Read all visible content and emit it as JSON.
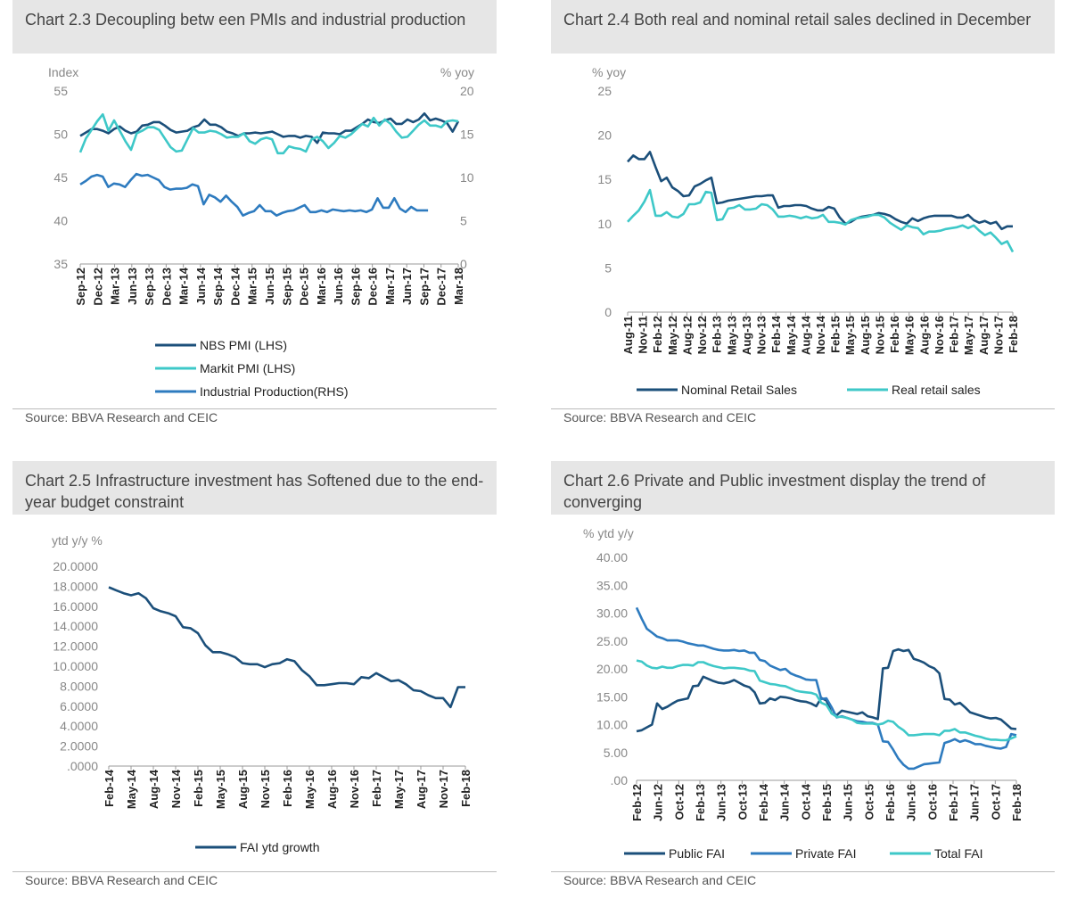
{
  "panels": [
    {
      "title": "Chart 2.3 Decoupling betw een PMIs and industrial production",
      "source": "Source: BBVA Research and CEIC"
    },
    {
      "title": "Chart 2.4 Both real and nominal retail sales declined in December",
      "source": "Source: BBVA Research and CEIC"
    },
    {
      "title": "Chart 2.5 Infrastructure investment has Softened due to the end-year budget constraint",
      "source": "Source: BBVA Research and CEIC"
    },
    {
      "title": "Chart 2.6 Private and Public investment display the trend of converging",
      "source": "Source: BBVA Research and CEIC"
    }
  ],
  "chart_data": [
    {
      "type": "line",
      "title": "Chart 2.3 Decoupling betw een PMIs and industrial production",
      "y_unit_left": "Index",
      "y_unit_right": "% yoy",
      "ylim": [
        35,
        55
      ],
      "yticks": [
        35,
        40,
        45,
        50,
        55
      ],
      "ylim_right": [
        0,
        20
      ],
      "yticks_right": [
        0,
        5,
        10,
        15,
        20
      ],
      "x_start": "2012-09",
      "x_end": "2018-03",
      "xtick_labels": [
        "Sep-12",
        "Dec-12",
        "Mar-13",
        "Jun-13",
        "Sep-13",
        "Dec-13",
        "Mar-14",
        "Jun-14",
        "Sep-14",
        "Dec-14",
        "Mar-15",
        "Jun-15",
        "Sep-15",
        "Dec-15",
        "Mar-16",
        "Jun-16",
        "Sep-16",
        "Dec-16",
        "Mar-17",
        "Jun-17",
        "Sep-17",
        "Dec-17",
        "Mar-18"
      ],
      "legend_position": "bottom",
      "series": [
        {
          "name": "NBS PMI (LHS)",
          "color": "#1b4f7a",
          "axis": "left",
          "values": [
            49.8,
            50.2,
            50.6,
            50.6,
            50.4,
            50.1,
            50.6,
            50.9,
            50.4,
            50.1,
            50.3,
            51.0,
            51.1,
            51.4,
            51.4,
            51.0,
            50.5,
            50.2,
            50.3,
            50.4,
            50.8,
            51.0,
            51.7,
            51.1,
            51.1,
            50.8,
            50.3,
            50.1,
            49.8,
            50.1,
            50.1,
            50.2,
            50.1,
            50.2,
            50.3,
            50.0,
            49.7,
            49.8,
            49.8,
            49.6,
            49.8,
            49.7,
            49.0,
            50.2,
            50.1,
            50.1,
            50.0,
            50.4,
            50.4,
            50.8,
            51.2,
            51.7,
            51.4,
            51.3,
            51.6,
            51.8,
            51.2,
            51.2,
            51.7,
            51.4,
            51.7,
            52.4,
            51.6,
            51.8,
            51.6,
            51.3,
            50.3,
            51.5
          ],
          "start_index": 0
        },
        {
          "name": "Markit PMI (LHS)",
          "color": "#3ec8c8",
          "axis": "left",
          "values": [
            47.9,
            49.5,
            50.5,
            51.5,
            52.3,
            50.4,
            51.6,
            50.4,
            49.2,
            48.2,
            50.1,
            50.4,
            50.8,
            50.8,
            50.5,
            49.5,
            48.5,
            48.0,
            48.1,
            49.4,
            50.7,
            50.2,
            50.2,
            50.4,
            50.3,
            50.0,
            49.6,
            49.7,
            49.7,
            50.1,
            49.2,
            48.9,
            49.4,
            49.6,
            49.4,
            47.8,
            47.8,
            48.6,
            48.4,
            48.3,
            48.0,
            49.4,
            49.7,
            49.2,
            48.4,
            49.0,
            49.8,
            49.6,
            50.0,
            50.6,
            51.2,
            50.9,
            51.9,
            51.0,
            51.7,
            51.2,
            50.3,
            49.6,
            49.7,
            50.4,
            51.1,
            51.6,
            51.0,
            51.0,
            50.8,
            51.5,
            51.6,
            51.5
          ],
          "start_index": 0
        },
        {
          "name": "Industrial Production(RHS)",
          "color": "#2e7bbf",
          "axis": "right",
          "values": [
            9.2,
            9.6,
            10.1,
            10.3,
            10.1,
            8.9,
            9.3,
            9.2,
            8.9,
            9.7,
            10.4,
            10.2,
            10.3,
            10.0,
            9.7,
            8.9,
            8.6,
            8.7,
            8.7,
            8.8,
            9.2,
            9.0,
            6.9,
            8.0,
            7.7,
            7.2,
            7.9,
            7.2,
            6.6,
            5.6,
            5.9,
            6.1,
            6.8,
            6.1,
            6.1,
            5.6,
            5.9,
            6.1,
            6.2,
            6.5,
            6.8,
            6.0,
            6.0,
            6.2,
            6.0,
            6.3,
            6.2,
            6.1,
            6.2,
            6.1,
            6.2,
            6.0,
            6.3,
            7.6,
            6.5,
            6.5,
            7.6,
            6.4,
            6.0,
            6.6,
            6.2,
            6.2,
            6.2
          ],
          "start_index": 0
        }
      ]
    },
    {
      "type": "line",
      "title": "Chart 2.4 Both real and nominal retail sales declined in December",
      "y_unit_left": "% yoy",
      "ylim": [
        0,
        25
      ],
      "yticks": [
        0,
        5,
        10,
        15,
        20,
        25
      ],
      "x_start": "2011-08",
      "x_end": "2018-02",
      "xtick_labels": [
        "Aug-11",
        "Nov-11",
        "Feb-12",
        "May-12",
        "Aug-12",
        "Nov-12",
        "Feb-13",
        "May-13",
        "Aug-13",
        "Nov-13",
        "Feb-14",
        "May-14",
        "Aug-14",
        "Nov-14",
        "Feb-15",
        "May-15",
        "Aug-15",
        "Nov-15",
        "Feb-16",
        "May-16",
        "Aug-16",
        "Nov-16",
        "Feb-17",
        "May-17",
        "Aug-17",
        "Nov-17",
        "Feb-18"
      ],
      "legend_position": "bottom",
      "series": [
        {
          "name": "Nominal Retail Sales",
          "color": "#1b4f7a",
          "values": [
            17.0,
            17.7,
            17.3,
            17.3,
            18.1,
            16.4,
            14.8,
            15.2,
            14.1,
            13.7,
            13.1,
            13.2,
            14.2,
            14.5,
            14.9,
            15.2,
            12.3,
            12.4,
            12.6,
            12.7,
            12.8,
            12.9,
            13.0,
            13.1,
            13.1,
            13.2,
            13.2,
            11.8,
            12.0,
            12.0,
            12.1,
            12.1,
            12.0,
            11.7,
            11.5,
            11.5,
            11.9,
            11.7,
            10.7,
            10.0,
            10.2,
            10.6,
            10.8,
            10.9,
            11.0,
            11.2,
            11.1,
            10.9,
            10.5,
            10.2,
            10.0,
            10.6,
            10.3,
            10.6,
            10.8,
            10.9,
            10.9,
            10.9,
            10.9,
            10.7,
            10.7,
            11.0,
            10.4,
            10.1,
            10.3,
            10.0,
            10.2,
            9.4,
            9.7,
            9.7
          ],
          "start_index": 0
        },
        {
          "name": "Real retail sales",
          "color": "#3ec8c8",
          "values": [
            10.2,
            10.9,
            11.5,
            12.5,
            13.8,
            10.9,
            10.9,
            11.3,
            10.8,
            10.7,
            11.1,
            12.2,
            12.2,
            12.4,
            13.6,
            13.5,
            10.4,
            10.5,
            11.7,
            11.8,
            12.1,
            11.6,
            11.6,
            11.7,
            12.2,
            12.1,
            11.6,
            10.8,
            10.8,
            10.9,
            10.8,
            10.6,
            10.8,
            10.6,
            10.7,
            11.0,
            10.2,
            10.2,
            10.1,
            9.9,
            10.4,
            10.6,
            10.7,
            10.8,
            11.0,
            11.0,
            10.7,
            10.1,
            9.7,
            9.3,
            9.8,
            9.6,
            9.5,
            8.8,
            9.1,
            9.1,
            9.2,
            9.4,
            9.5,
            9.6,
            9.8,
            9.5,
            9.8,
            9.2,
            8.7,
            9.0,
            8.4,
            7.7,
            8.0,
            6.8
          ],
          "start_index": 0
        }
      ]
    },
    {
      "type": "line",
      "title": "Chart 2.5 Infrastructure investment has Softened due to the end-year budget constraint",
      "y_unit_left": "ytd y/y %",
      "ylim": [
        0,
        20
      ],
      "yticks": [
        0,
        2,
        4,
        6,
        8,
        10,
        12,
        14,
        16,
        18,
        20
      ],
      "ytick_labels": [
        ".0000",
        "2.0000",
        "4.0000",
        "6.0000",
        "8.0000",
        "10.0000",
        "12.0000",
        "14.0000",
        "16.0000",
        "18.0000",
        "20.0000"
      ],
      "x_start": "2014-02",
      "x_end": "2018-02",
      "xtick_labels": [
        "Feb-14",
        "May-14",
        "Aug-14",
        "Nov-14",
        "Feb-15",
        "May-15",
        "Aug-15",
        "Nov-15",
        "Feb-16",
        "May-16",
        "Aug-16",
        "Nov-16",
        "Feb-17",
        "May-17",
        "Aug-17",
        "Nov-17",
        "Feb-18"
      ],
      "legend_position": "bottom",
      "series": [
        {
          "name": "FAI ytd growth",
          "color": "#1b4f7a",
          "values": [
            17.9,
            17.6,
            17.3,
            17.1,
            17.3,
            16.8,
            15.8,
            15.5,
            15.3,
            15.0,
            13.9,
            13.8,
            13.3,
            12.1,
            11.4,
            11.4,
            11.2,
            10.9,
            10.3,
            10.2,
            10.2,
            9.9,
            10.2,
            10.3,
            10.7,
            10.5,
            9.6,
            9.0,
            8.1,
            8.1,
            8.2,
            8.3,
            8.3,
            8.2,
            8.9,
            8.8,
            9.3,
            8.9,
            8.5,
            8.6,
            8.2,
            7.6,
            7.5,
            7.1,
            6.8,
            6.8,
            5.9,
            7.9,
            7.9
          ],
          "start_index": 0
        }
      ]
    },
    {
      "type": "line",
      "title": "Chart 2.6 Private and Public investment display the trend of converging",
      "y_unit_left": "% ytd  y/y",
      "ylim": [
        0,
        40
      ],
      "yticks": [
        0,
        5,
        10,
        15,
        20,
        25,
        30,
        35,
        40
      ],
      "ytick_labels": [
        ".00",
        "5.00",
        "10.00",
        "15.00",
        "20.00",
        "25.00",
        "30.00",
        "35.00",
        "40.00"
      ],
      "x_start": "2012-02",
      "x_end": "2018-02",
      "xtick_labels": [
        "Feb-12",
        "Jun-12",
        "Oct-12",
        "Feb-13",
        "Jun-13",
        "Oct-13",
        "Feb-14",
        "Jun-14",
        "Oct-14",
        "Feb-15",
        "Jun-15",
        "Oct-15",
        "Feb-16",
        "Jun-16",
        "Oct-16",
        "Feb-17",
        "Jun-17",
        "Oct-17",
        "Feb-18"
      ],
      "legend_position": "bottom",
      "series": [
        {
          "name": "Public FAI",
          "color": "#1b4f7a",
          "values": [
            8.8,
            9.0,
            9.5,
            10.0,
            13.8,
            12.8,
            13.2,
            13.8,
            14.3,
            14.5,
            14.7,
            16.9,
            17.0,
            18.6,
            18.2,
            17.8,
            17.5,
            17.4,
            17.6,
            18.0,
            17.5,
            17.0,
            16.7,
            15.8,
            13.8,
            13.9,
            14.7,
            14.4,
            15.0,
            14.9,
            14.7,
            14.4,
            14.2,
            14.1,
            13.8,
            13.3,
            14.8,
            14.3,
            12.0,
            11.7,
            12.5,
            12.3,
            12.1,
            11.9,
            12.2,
            11.5,
            11.3,
            11.0,
            20.1,
            20.2,
            23.2,
            23.5,
            23.2,
            23.4,
            21.8,
            21.5,
            21.1,
            20.5,
            20.1,
            19.2,
            14.6,
            14.5,
            13.6,
            13.9,
            13.1,
            12.2,
            11.9,
            11.6,
            11.3,
            11.1,
            11.2,
            10.9,
            10.1,
            9.3,
            9.2
          ],
          "start_index": 0
        },
        {
          "name": "Private FAI",
          "color": "#2e7bbf",
          "values": [
            31.0,
            29.0,
            27.2,
            26.5,
            25.8,
            25.5,
            25.1,
            25.1,
            25.1,
            24.9,
            24.6,
            24.4,
            24.2,
            24.2,
            23.9,
            23.6,
            23.4,
            23.3,
            23.3,
            23.4,
            23.2,
            23.3,
            22.9,
            22.9,
            21.6,
            21.4,
            20.6,
            20.2,
            19.8,
            20.0,
            19.2,
            18.8,
            18.5,
            18.1,
            18.0,
            18.0,
            14.6,
            14.7,
            13.1,
            11.3,
            11.5,
            11.2,
            10.9,
            10.6,
            10.5,
            10.3,
            10.3,
            10.0,
            7.0,
            6.9,
            5.5,
            3.9,
            2.8,
            2.1,
            2.1,
            2.5,
            2.9,
            3.0,
            3.1,
            3.2,
            6.7,
            7.0,
            7.4,
            6.9,
            7.2,
            6.9,
            6.5,
            6.5,
            6.2,
            6.0,
            5.8,
            5.7,
            6.0,
            8.3,
            8.1
          ],
          "start_index": 0
        },
        {
          "name": "Total FAI",
          "color": "#3ec8c8",
          "values": [
            21.5,
            21.3,
            20.6,
            20.2,
            20.1,
            20.4,
            20.2,
            20.2,
            20.5,
            20.7,
            20.7,
            20.6,
            21.2,
            21.2,
            20.8,
            20.5,
            20.3,
            20.1,
            20.2,
            20.2,
            20.1,
            20.0,
            19.7,
            19.6,
            17.9,
            17.6,
            17.3,
            17.2,
            17.0,
            16.9,
            16.5,
            16.1,
            15.9,
            15.8,
            15.7,
            15.4,
            13.9,
            13.5,
            12.0,
            11.4,
            11.4,
            11.2,
            10.9,
            10.3,
            10.2,
            10.2,
            10.2,
            10.0,
            10.2,
            10.7,
            10.5,
            9.6,
            9.0,
            8.1,
            8.1,
            8.2,
            8.3,
            8.3,
            8.3,
            8.1,
            8.9,
            8.9,
            9.2,
            8.6,
            8.6,
            8.3,
            8.0,
            7.8,
            7.5,
            7.3,
            7.3,
            7.2,
            7.2,
            7.5,
            7.9
          ],
          "start_index": 0
        }
      ]
    }
  ]
}
